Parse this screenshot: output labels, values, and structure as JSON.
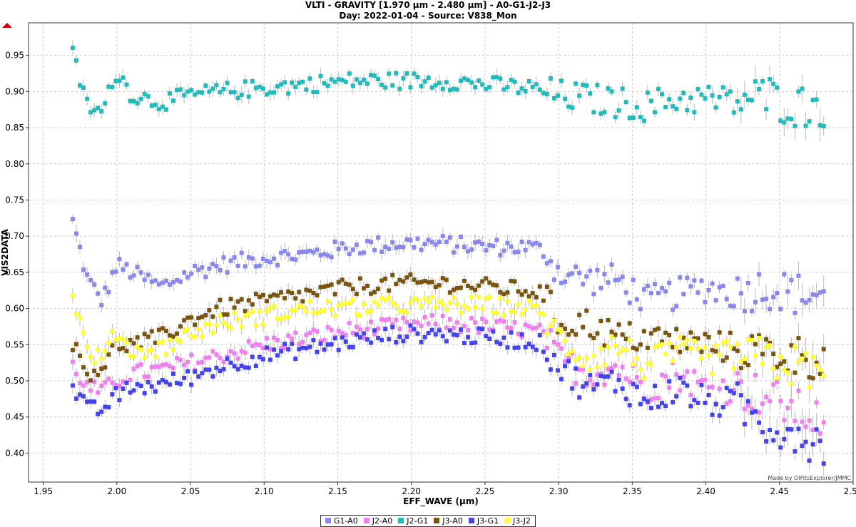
{
  "chart_data": {
    "type": "scatter",
    "title": "VLTI - GRAVITY [1.970 µm - 2.480 µm] - A0-G1-J2-J3",
    "subtitle": "Day: 2022-01-04 - Source: V838_Mon",
    "xlabel": "EFF_WAVE (µm)",
    "ylabel": "VIS2DATA",
    "xlim": [
      1.94,
      2.5
    ],
    "ylim": [
      0.36,
      0.995
    ],
    "x_ticks": [
      "1.95",
      "2.00",
      "2.05",
      "2.10",
      "2.15",
      "2.20",
      "2.25",
      "2.30",
      "2.35",
      "2.40",
      "2.45",
      "2.50"
    ],
    "y_ticks": [
      "0.40",
      "0.45",
      "0.50",
      "0.55",
      "0.60",
      "0.65",
      "0.70",
      "0.75",
      "0.80",
      "0.85",
      "0.90",
      "0.95"
    ],
    "grid": true,
    "error_bars": true,
    "legend_position": "bottom-center",
    "credit": "Made by OIFitsExplorer/JMMC",
    "series": [
      {
        "name": "G1-A0",
        "color": "#8888ee",
        "x": [
          1.97,
          1.98,
          1.99,
          2.0,
          2.01,
          2.03,
          2.05,
          2.07,
          2.1,
          2.13,
          2.16,
          2.19,
          2.22,
          2.25,
          2.28,
          2.29,
          2.3,
          2.32,
          2.34,
          2.36,
          2.38,
          2.4,
          2.42,
          2.44,
          2.46,
          2.48
        ],
        "y": [
          0.72,
          0.64,
          0.61,
          0.66,
          0.65,
          0.63,
          0.65,
          0.66,
          0.67,
          0.675,
          0.685,
          0.69,
          0.69,
          0.685,
          0.685,
          0.68,
          0.65,
          0.64,
          0.64,
          0.61,
          0.62,
          0.63,
          0.62,
          0.63,
          0.62,
          0.62
        ]
      },
      {
        "name": "J2-A0",
        "color": "#f080f0",
        "x": [
          1.97,
          1.98,
          1.99,
          2.0,
          2.01,
          2.03,
          2.05,
          2.07,
          2.1,
          2.13,
          2.16,
          2.19,
          2.22,
          2.25,
          2.28,
          2.29,
          2.3,
          2.32,
          2.34,
          2.36,
          2.38,
          2.4,
          2.42,
          2.44,
          2.46,
          2.48
        ],
        "y": [
          0.52,
          0.49,
          0.485,
          0.5,
          0.51,
          0.515,
          0.525,
          0.535,
          0.55,
          0.56,
          0.57,
          0.575,
          0.58,
          0.575,
          0.57,
          0.565,
          0.53,
          0.51,
          0.52,
          0.49,
          0.51,
          0.49,
          0.49,
          0.48,
          0.46,
          0.445
        ]
      },
      {
        "name": "J2-G1",
        "color": "#22bbbb",
        "x": [
          1.97,
          1.98,
          1.99,
          2.0,
          2.01,
          2.03,
          2.05,
          2.07,
          2.1,
          2.13,
          2.16,
          2.19,
          2.22,
          2.25,
          2.28,
          2.29,
          2.3,
          2.32,
          2.34,
          2.36,
          2.38,
          2.4,
          2.42,
          2.44,
          2.46,
          2.48
        ],
        "y": [
          0.95,
          0.88,
          0.87,
          0.93,
          0.895,
          0.885,
          0.895,
          0.9,
          0.905,
          0.91,
          0.915,
          0.915,
          0.915,
          0.91,
          0.905,
          0.9,
          0.895,
          0.89,
          0.885,
          0.88,
          0.89,
          0.89,
          0.885,
          0.895,
          0.88,
          0.88
        ]
      },
      {
        "name": "J3-A0",
        "color": "#7a5510",
        "x": [
          1.97,
          1.98,
          1.99,
          2.0,
          2.01,
          2.03,
          2.05,
          2.07,
          2.1,
          2.13,
          2.16,
          2.19,
          2.22,
          2.25,
          2.28,
          2.29,
          2.3,
          2.32,
          2.34,
          2.36,
          2.38,
          2.4,
          2.42,
          2.44,
          2.46,
          2.48
        ],
        "y": [
          0.55,
          0.51,
          0.52,
          0.55,
          0.55,
          0.56,
          0.585,
          0.6,
          0.61,
          0.62,
          0.63,
          0.635,
          0.635,
          0.63,
          0.625,
          0.62,
          0.58,
          0.58,
          0.56,
          0.56,
          0.555,
          0.55,
          0.545,
          0.54,
          0.535,
          0.53
        ]
      },
      {
        "name": "J3-G1",
        "color": "#4444ee",
        "x": [
          1.97,
          1.98,
          1.99,
          2.0,
          2.01,
          2.03,
          2.05,
          2.07,
          2.1,
          2.13,
          2.16,
          2.19,
          2.22,
          2.25,
          2.28,
          2.29,
          2.3,
          2.32,
          2.34,
          2.36,
          2.38,
          2.4,
          2.42,
          2.44,
          2.46,
          2.48
        ],
        "y": [
          0.49,
          0.46,
          0.46,
          0.48,
          0.49,
          0.495,
          0.505,
          0.52,
          0.535,
          0.545,
          0.555,
          0.565,
          0.565,
          0.56,
          0.555,
          0.55,
          0.52,
          0.49,
          0.5,
          0.47,
          0.49,
          0.47,
          0.47,
          0.44,
          0.43,
          0.41
        ]
      },
      {
        "name": "J3-J2",
        "color": "#ffff33",
        "x": [
          1.97,
          1.98,
          1.99,
          2.0,
          2.01,
          2.03,
          2.05,
          2.07,
          2.1,
          2.13,
          2.16,
          2.19,
          2.22,
          2.25,
          2.28,
          2.29,
          2.3,
          2.32,
          2.34,
          2.36,
          2.38,
          2.4,
          2.42,
          2.44,
          2.46,
          2.48
        ],
        "y": [
          0.62,
          0.54,
          0.53,
          0.57,
          0.54,
          0.545,
          0.565,
          0.58,
          0.59,
          0.6,
          0.6,
          0.605,
          0.605,
          0.605,
          0.6,
          0.59,
          0.56,
          0.53,
          0.55,
          0.52,
          0.54,
          0.53,
          0.535,
          0.53,
          0.52,
          0.51
        ]
      }
    ]
  }
}
